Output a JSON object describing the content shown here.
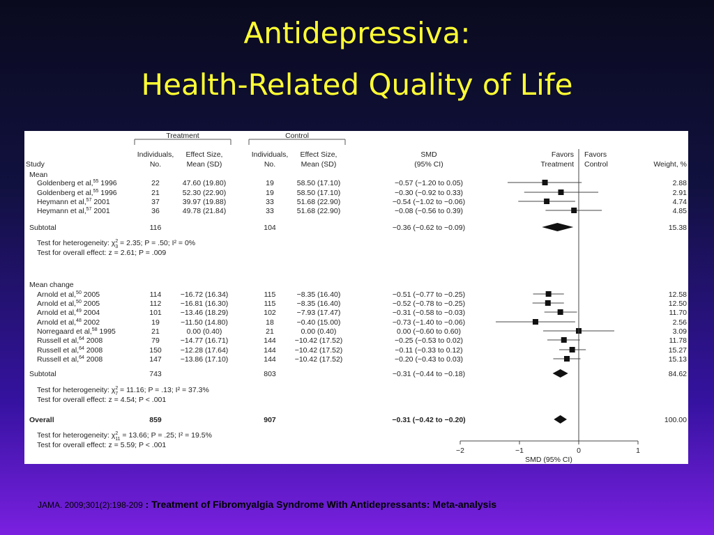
{
  "slide": {
    "title_line1": "Antidepressiva:",
    "title_line2": "Health-Related Quality of Life",
    "reference_citation": "JAMA. 2009;301(2):198-209",
    "reference_sep": " : ",
    "reference_title": "Treatment of Fibromyalgia Syndrome With Antidepressants: Meta-analysis"
  },
  "chart_data": {
    "type": "forest",
    "xlabel": "SMD (95% CI)",
    "xlim": [
      -2,
      1
    ],
    "xticks": [
      "-2",
      "-1",
      "0",
      "1"
    ],
    "favors_left": [
      "Favors",
      "Treatment"
    ],
    "favors_right": [
      "Favors",
      "Control"
    ],
    "group_treatment": "Treatment",
    "group_control": "Control",
    "columns": {
      "study": "Study",
      "individuals": [
        "Individuals,",
        "No."
      ],
      "effect": [
        "Effect Size,",
        "Mean (SD)"
      ],
      "smd": [
        "SMD",
        "(95% CI)"
      ],
      "weight": "Weight, %"
    },
    "groups": [
      {
        "label": "Mean",
        "studies": [
          {
            "name": "Goldenberg et al,",
            "ref": "55",
            "year": "1996",
            "t_n": "22",
            "t_es": "47.60 (19.80)",
            "c_n": "19",
            "c_es": "58.50 (17.10)",
            "smd": -0.57,
            "lo": -1.2,
            "hi": 0.05,
            "ci_text": "−0.57 (−1.20 to 0.05)",
            "weight": "2.88"
          },
          {
            "name": "Goldenberg et al,",
            "ref": "55",
            "year": "1996",
            "t_n": "21",
            "t_es": "52.30 (22.90)",
            "c_n": "19",
            "c_es": "58.50 (17.10)",
            "smd": -0.3,
            "lo": -0.92,
            "hi": 0.33,
            "ci_text": "−0.30 (−0.92 to 0.33)",
            "weight": "2.91"
          },
          {
            "name": "Heymann et al,",
            "ref": "57",
            "year": "2001",
            "t_n": "37",
            "t_es": "39.97 (19.88)",
            "c_n": "33",
            "c_es": "51.68 (22.90)",
            "smd": -0.54,
            "lo": -1.02,
            "hi": -0.06,
            "ci_text": "−0.54 (−1.02 to −0.06)",
            "weight": "4.74"
          },
          {
            "name": "Heymann et al,",
            "ref": "57",
            "year": "2001",
            "t_n": "36",
            "t_es": "49.78 (21.84)",
            "c_n": "33",
            "c_es": "51.68 (22.90)",
            "smd": -0.08,
            "lo": -0.56,
            "hi": 0.39,
            "ci_text": "−0.08 (−0.56 to 0.39)",
            "weight": "4.85"
          }
        ],
        "subtotal": {
          "label": "Subtotal",
          "t_n": "116",
          "c_n": "104",
          "smd": -0.36,
          "lo": -0.62,
          "hi": -0.09,
          "ci_text": "−0.36 (−0.62 to −0.09)",
          "weight": "15.38"
        },
        "het_prefix": "Test for heterogeneity: χ",
        "het_sub": "3",
        "het_sup": "2",
        "het_rest": " = 2.35; P = .50; I² = 0%",
        "overall_test": "Test for overall effect: z = 2.61; P = .009"
      },
      {
        "label": "Mean change",
        "studies": [
          {
            "name": "Arnold et al,",
            "ref": "50",
            "year": "2005",
            "t_n": "114",
            "t_es": "−16.72 (16.34)",
            "c_n": "115",
            "c_es": "−8.35 (16.40)",
            "smd": -0.51,
            "lo": -0.77,
            "hi": -0.25,
            "ci_text": "−0.51 (−0.77 to −0.25)",
            "weight": "12.58"
          },
          {
            "name": "Arnold et al,",
            "ref": "50",
            "year": "2005",
            "t_n": "112",
            "t_es": "−16.81 (16.30)",
            "c_n": "115",
            "c_es": "−8.35 (16.40)",
            "smd": -0.52,
            "lo": -0.78,
            "hi": -0.25,
            "ci_text": "−0.52 (−0.78 to −0.25)",
            "weight": "12.50"
          },
          {
            "name": "Arnold et al,",
            "ref": "49",
            "year": "2004",
            "t_n": "101",
            "t_es": "−13.46 (18.29)",
            "c_n": "102",
            "c_es": "−7.93 (17.47)",
            "smd": -0.31,
            "lo": -0.58,
            "hi": -0.03,
            "ci_text": "−0.31 (−0.58 to −0.03)",
            "weight": "11.70"
          },
          {
            "name": "Arnold et al,",
            "ref": "48",
            "year": "2002",
            "t_n": "19",
            "t_es": "−11.50 (14.80)",
            "c_n": "18",
            "c_es": "−0.40 (15.00)",
            "smd": -0.73,
            "lo": -1.4,
            "hi": -0.06,
            "ci_text": "−0.73 (−1.40 to −0.06)",
            "weight": "2.56"
          },
          {
            "name": "Norregaard et al,",
            "ref": "58",
            "year": "1995",
            "t_n": "21",
            "t_es": "0.00 (0.40)",
            "c_n": "21",
            "c_es": "0.00 (0.40)",
            "smd": 0.0,
            "lo": -0.6,
            "hi": 0.6,
            "ci_text": "0.00 (−0.60 to 0.60)",
            "weight": "3.09"
          },
          {
            "name": "Russell et al,",
            "ref": "64",
            "year": "2008",
            "t_n": "79",
            "t_es": "−14.77 (16.71)",
            "c_n": "144",
            "c_es": "−10.42 (17.52)",
            "smd": -0.25,
            "lo": -0.53,
            "hi": 0.02,
            "ci_text": "−0.25 (−0.53 to 0.02)",
            "weight": "11.78"
          },
          {
            "name": "Russell et al,",
            "ref": "64",
            "year": "2008",
            "t_n": "150",
            "t_es": "−12.28 (17.64)",
            "c_n": "144",
            "c_es": "−10.42 (17.52)",
            "smd": -0.11,
            "lo": -0.33,
            "hi": 0.12,
            "ci_text": "−0.11 (−0.33 to 0.12)",
            "weight": "15.27"
          },
          {
            "name": "Russell et al,",
            "ref": "64",
            "year": "2008",
            "t_n": "147",
            "t_es": "−13.86 (17.10)",
            "c_n": "144",
            "c_es": "−10.42 (17.52)",
            "smd": -0.2,
            "lo": -0.43,
            "hi": 0.03,
            "ci_text": "−0.20 (−0.43 to 0.03)",
            "weight": "15.13"
          }
        ],
        "subtotal": {
          "label": "Subtotal",
          "t_n": "743",
          "c_n": "803",
          "smd": -0.31,
          "lo": -0.44,
          "hi": -0.18,
          "ci_text": "−0.31 (−0.44 to −0.18)",
          "weight": "84.62"
        },
        "het_prefix": "Test for heterogeneity: χ",
        "het_sub": "7",
        "het_sup": "2",
        "het_rest": " = 11.16; P = .13; I² = 37.3%",
        "overall_test": "Test for overall effect: z = 4.54; P < .001"
      }
    ],
    "overall": {
      "label": "Overall",
      "t_n": "859",
      "c_n": "907",
      "smd": -0.31,
      "lo": -0.42,
      "hi": -0.2,
      "ci_text": "−0.31 (−0.42 to −0.20)",
      "weight": "100.00",
      "het_prefix": "Test for heterogeneity: χ",
      "het_sub": "11",
      "het_sup": "2",
      "het_rest": " = 13.66; P = .25; I² = 19.5%",
      "overall_test": "Test for overall effect: z = 5.59; P < .001"
    }
  }
}
